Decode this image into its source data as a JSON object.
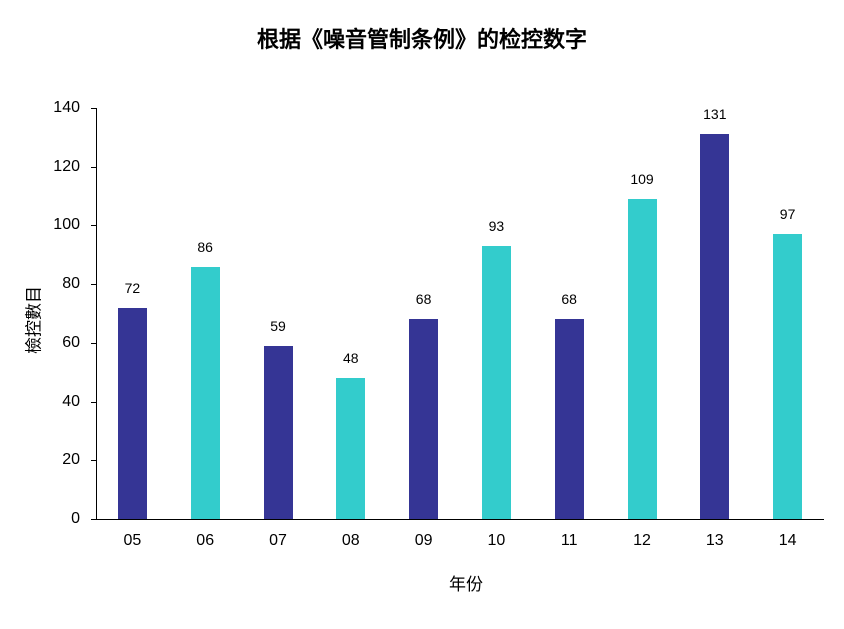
{
  "chart_data": {
    "type": "bar",
    "title": "根据《噪音管制条例》的检控数字",
    "xlabel": "年份",
    "ylabel": "檢控數目",
    "categories": [
      "05",
      "06",
      "07",
      "08",
      "09",
      "10",
      "11",
      "12",
      "13",
      "14"
    ],
    "values": [
      72,
      86,
      59,
      48,
      68,
      93,
      68,
      109,
      131,
      97
    ],
    "bar_colors": [
      "#353595",
      "#33CCCC",
      "#353595",
      "#33CCCC",
      "#353595",
      "#33CCCC",
      "#353595",
      "#33CCCC",
      "#353595",
      "#33CCCC"
    ],
    "ylim": [
      0,
      140
    ],
    "yticks": [
      0,
      20,
      40,
      60,
      80,
      100,
      120,
      140
    ],
    "grid": false,
    "legend": null,
    "data_labels": true
  }
}
